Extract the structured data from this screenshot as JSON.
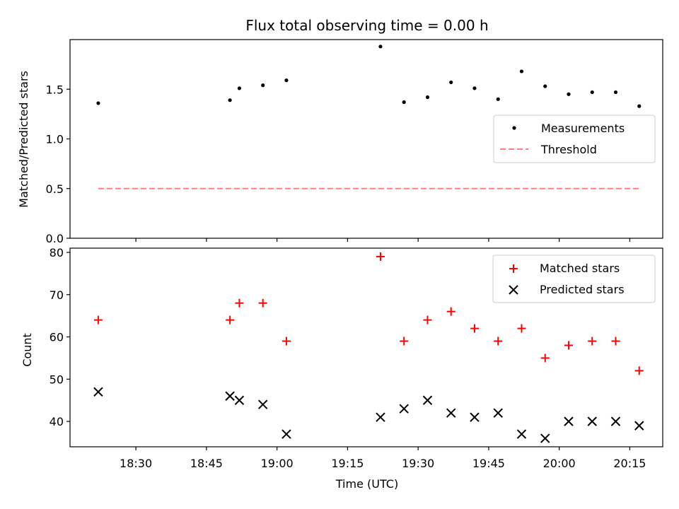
{
  "chart_data": [
    {
      "type": "scatter",
      "title": "Flux total observing time = 0.00 h",
      "xlabel": "",
      "ylabel": "Matched/Predicted stars",
      "ylim": [
        0,
        2.0
      ],
      "yticks": [
        0.0,
        0.5,
        1.0,
        1.5
      ],
      "ytick_labels": [
        "0.0",
        "0.5",
        "1.0",
        "1.5"
      ],
      "legend_position": "center-right",
      "series": [
        {
          "name": "Measurements",
          "marker": "dot",
          "color": "#000000",
          "x_min": [
            1102,
            1130,
            1132,
            1137,
            1142,
            1162,
            1167,
            1172,
            1177,
            1182,
            1187,
            1192,
            1197,
            1202,
            1207,
            1212,
            1217
          ],
          "values": [
            1.36,
            1.39,
            1.51,
            1.54,
            1.59,
            1.93,
            1.37,
            1.42,
            1.57,
            1.51,
            1.4,
            1.68,
            1.53,
            1.45,
            1.47,
            1.47,
            1.33
          ]
        },
        {
          "name": "Threshold",
          "marker": "dashed-line",
          "color": "#ff7f7f",
          "x_min": [
            1102,
            1217
          ],
          "values": [
            0.5,
            0.5
          ]
        }
      ]
    },
    {
      "type": "scatter",
      "title": "",
      "xlabel": "Time (UTC)",
      "ylabel": "Count",
      "ylim": [
        34,
        81
      ],
      "yticks": [
        40,
        50,
        60,
        70,
        80
      ],
      "ytick_labels": [
        "40",
        "50",
        "60",
        "70",
        "80"
      ],
      "legend_position": "top-right",
      "categories_x": [
        "18:30",
        "18:45",
        "19:00",
        "19:15",
        "19:30",
        "19:45",
        "20:00",
        "20:15"
      ],
      "xtick_min": [
        1110,
        1125,
        1140,
        1155,
        1170,
        1185,
        1200,
        1215
      ],
      "xlim_min": [
        1096,
        1222
      ],
      "series": [
        {
          "name": "Matched stars",
          "marker": "plus",
          "color": "#ff0000",
          "x_min": [
            1102,
            1130,
            1132,
            1137,
            1142,
            1162,
            1167,
            1172,
            1177,
            1182,
            1187,
            1192,
            1197,
            1202,
            1207,
            1212,
            1217
          ],
          "values": [
            64,
            64,
            68,
            68,
            59,
            79,
            59,
            64,
            66,
            62,
            59,
            62,
            55,
            58,
            59,
            59,
            52
          ]
        },
        {
          "name": "Predicted stars",
          "marker": "x",
          "color": "#000000",
          "x_min": [
            1102,
            1130,
            1132,
            1137,
            1142,
            1162,
            1167,
            1172,
            1177,
            1182,
            1187,
            1192,
            1197,
            1202,
            1207,
            1212,
            1217
          ],
          "values": [
            47,
            46,
            45,
            44,
            37,
            41,
            43,
            45,
            42,
            41,
            42,
            37,
            36,
            40,
            40,
            40,
            39
          ]
        }
      ]
    }
  ]
}
